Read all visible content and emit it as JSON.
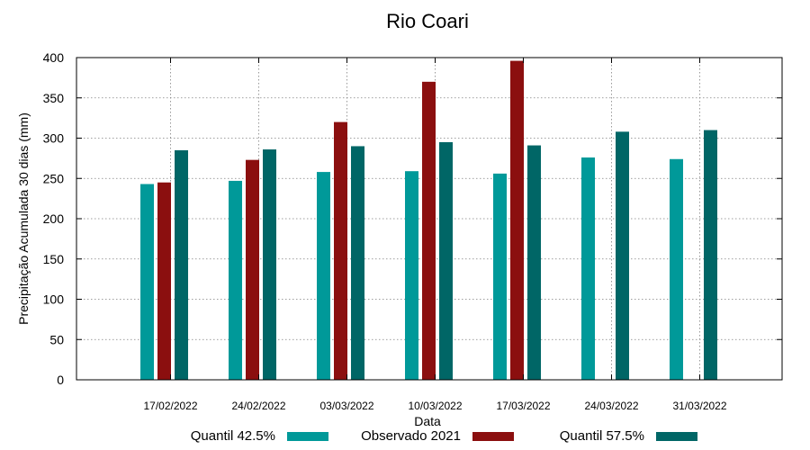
{
  "chart_data": {
    "type": "bar",
    "title": "Rio Coari",
    "xlabel": "Data",
    "ylabel": "Precipitação Acumulada 30 dias (mm)",
    "ylim": [
      0,
      400
    ],
    "yticks": [
      "0",
      "50",
      "100",
      "150",
      "200",
      "250",
      "300",
      "350",
      "400"
    ],
    "grid": true,
    "legend_position": "bottom",
    "categories": [
      "17/02/2022",
      "24/02/2022",
      "03/03/2022",
      "10/03/2022",
      "17/03/2022",
      "24/03/2022",
      "31/03/2022"
    ],
    "series": [
      {
        "name": "Quantil 42.5%",
        "color": "#009999",
        "values": [
          243,
          247,
          258,
          259,
          256,
          276,
          274
        ]
      },
      {
        "name": "Observado 2021",
        "color": "#8b0f0f",
        "values": [
          245,
          273,
          320,
          370,
          396,
          null,
          null
        ]
      },
      {
        "name": "Quantil 57.5%",
        "color": "#006666",
        "values": [
          285,
          286,
          290,
          295,
          291,
          308,
          310
        ]
      }
    ]
  }
}
